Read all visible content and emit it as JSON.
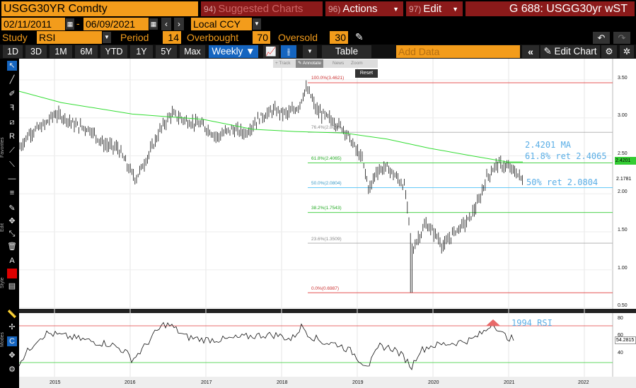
{
  "header": {
    "ticker": "USGG30YR Comdty",
    "suggested_num": "94)",
    "suggested_label": "Suggested Charts",
    "actions_num": "96)",
    "actions_label": "Actions",
    "edit_num": "97)",
    "edit_label": "Edit",
    "chart_id": "G 688: USGG30yr wST"
  },
  "row2": {
    "start_date": "02/11/2011",
    "dash": "-",
    "end_date": "06/09/2021",
    "currency": "Local CCY"
  },
  "row3": {
    "study_label": "Study",
    "study_value": "RSI",
    "period_label": "Period",
    "period_value": "14",
    "overbought_label": "Overbought",
    "overbought_value": "70",
    "oversold_label": "Oversold",
    "oversold_value": "30"
  },
  "toolbar": {
    "ranges": [
      "1D",
      "3D",
      "1M",
      "6M",
      "YTD",
      "1Y",
      "5Y",
      "Max"
    ],
    "frequency": "Weekly ▼",
    "table_label": "Table",
    "add_data_placeholder": "Add Data",
    "edit_chart_label": "Edit Chart"
  },
  "mini_toolbar": {
    "track": "Track",
    "annotate": "Annotate",
    "news": "News",
    "zoom": "Zoom",
    "reset": "Reset"
  },
  "side_labels": {
    "favorites": "Favorites",
    "edit": "Edit",
    "style": "Style",
    "modes": "Modes"
  },
  "main_chart": {
    "y_ticks": [
      "3.50",
      "3.00",
      "2.50",
      "2.00",
      "1.50",
      "1.00",
      "0.50"
    ],
    "last_price": "2.4201",
    "last_close": "2.1781",
    "fib_levels": [
      {
        "label": "100.0%(3.4621)",
        "value": 3.4621,
        "color": "#e03c3c"
      },
      {
        "label": "76.4%(2.8098)",
        "value": 2.8098,
        "color": "#aaaaaa"
      },
      {
        "label": "61.8%(2.4065)",
        "value": 2.4065,
        "color": "#33cc33"
      },
      {
        "label": "50.0%(2.0804)",
        "value": 2.0804,
        "color": "#4fc3f7"
      },
      {
        "label": "38.2%(1.7543)",
        "value": 1.7543,
        "color": "#33cc33"
      },
      {
        "label": "23.6%(1.3509)",
        "value": 1.3509,
        "color": "#aaaaaa"
      },
      {
        "label": "0.0%(0.6987)",
        "value": 0.6987,
        "color": "#e03c3c"
      }
    ],
    "annotations": {
      "ma": "2.4201 MA",
      "ret618": "61.8% ret 2.4065",
      "ret50": "50% ret 2.0804"
    }
  },
  "rsi_chart": {
    "y_ticks": [
      "80",
      "60",
      "40"
    ],
    "last_value": "54.2815",
    "annotation": "1994 RSI"
  },
  "x_axis": [
    "2015",
    "2016",
    "2017",
    "2018",
    "2019",
    "2020",
    "2021",
    "2022"
  ],
  "colors": {
    "orange": "#f39c1b",
    "red_button": "#8b1a1a",
    "blue_selected": "#1565c0",
    "ma_green": "#33cc33",
    "cyan": "#4fc3f7"
  }
}
